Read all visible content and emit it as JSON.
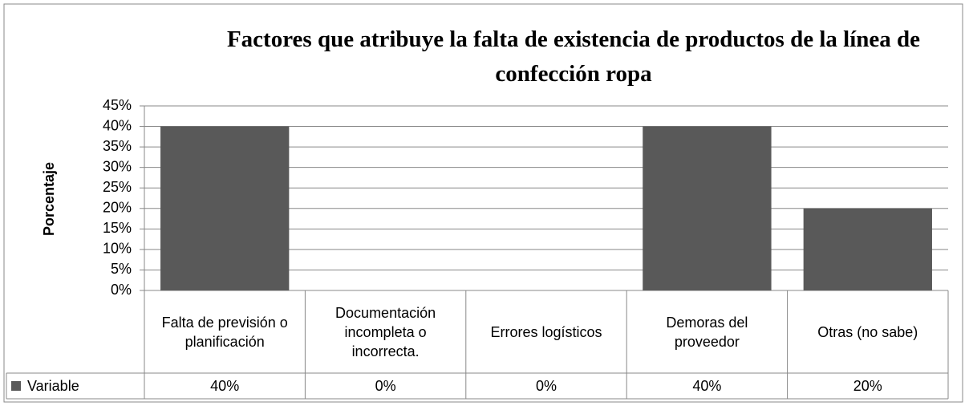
{
  "chart_data": {
    "type": "bar",
    "title": "Factores que atribuye la falta de existencia de productos de la línea de confección ropa",
    "y_label": "Porcentaje",
    "categories": [
      "Falta de previsión o planificación",
      "Documentación incompleta o incorrecta.",
      "Errores logísticos",
      "Demoras del proveedor",
      "Otras (no sabe)"
    ],
    "series": [
      {
        "name": "Variable",
        "color": "#595959",
        "values": [
          40,
          0,
          0,
          40,
          20
        ],
        "value_labels": [
          "40%",
          "0%",
          "0%",
          "40%",
          "20%"
        ]
      }
    ],
    "ylim": [
      0,
      45
    ],
    "yticks": [
      {
        "value": 0,
        "label": "0%"
      },
      {
        "value": 5,
        "label": "5%"
      },
      {
        "value": 10,
        "label": "10%"
      },
      {
        "value": 15,
        "label": "15%"
      },
      {
        "value": 20,
        "label": "20%"
      },
      {
        "value": 25,
        "label": "25%"
      },
      {
        "value": 30,
        "label": "30%"
      },
      {
        "value": 35,
        "label": "35%"
      },
      {
        "value": 40,
        "label": "40%"
      },
      {
        "value": 45,
        "label": "45%"
      }
    ],
    "grid": true
  }
}
